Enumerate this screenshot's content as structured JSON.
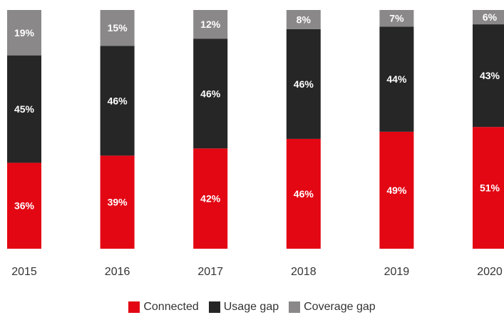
{
  "chart_data": {
    "type": "bar",
    "stacked": true,
    "categories": [
      "2015",
      "2016",
      "2017",
      "2018",
      "2019",
      "2020"
    ],
    "series": [
      {
        "name": "Connected",
        "color": "#e30613",
        "label_color": "#ffffff",
        "values": [
          36,
          39,
          42,
          46,
          49,
          51
        ]
      },
      {
        "name": "Usage gap",
        "color": "#262626",
        "label_color": "#ffffff",
        "values": [
          45,
          46,
          46,
          46,
          44,
          43
        ]
      },
      {
        "name": "Coverage gap",
        "color": "#8a8888",
        "label_color": "#ffffff",
        "values": [
          19,
          15,
          12,
          8,
          7,
          6
        ]
      }
    ],
    "value_suffix": "%",
    "ylim": [
      0,
      100
    ],
    "grid": false,
    "legend": "bottom-center",
    "title": "",
    "xlabel": "",
    "ylabel": ""
  }
}
